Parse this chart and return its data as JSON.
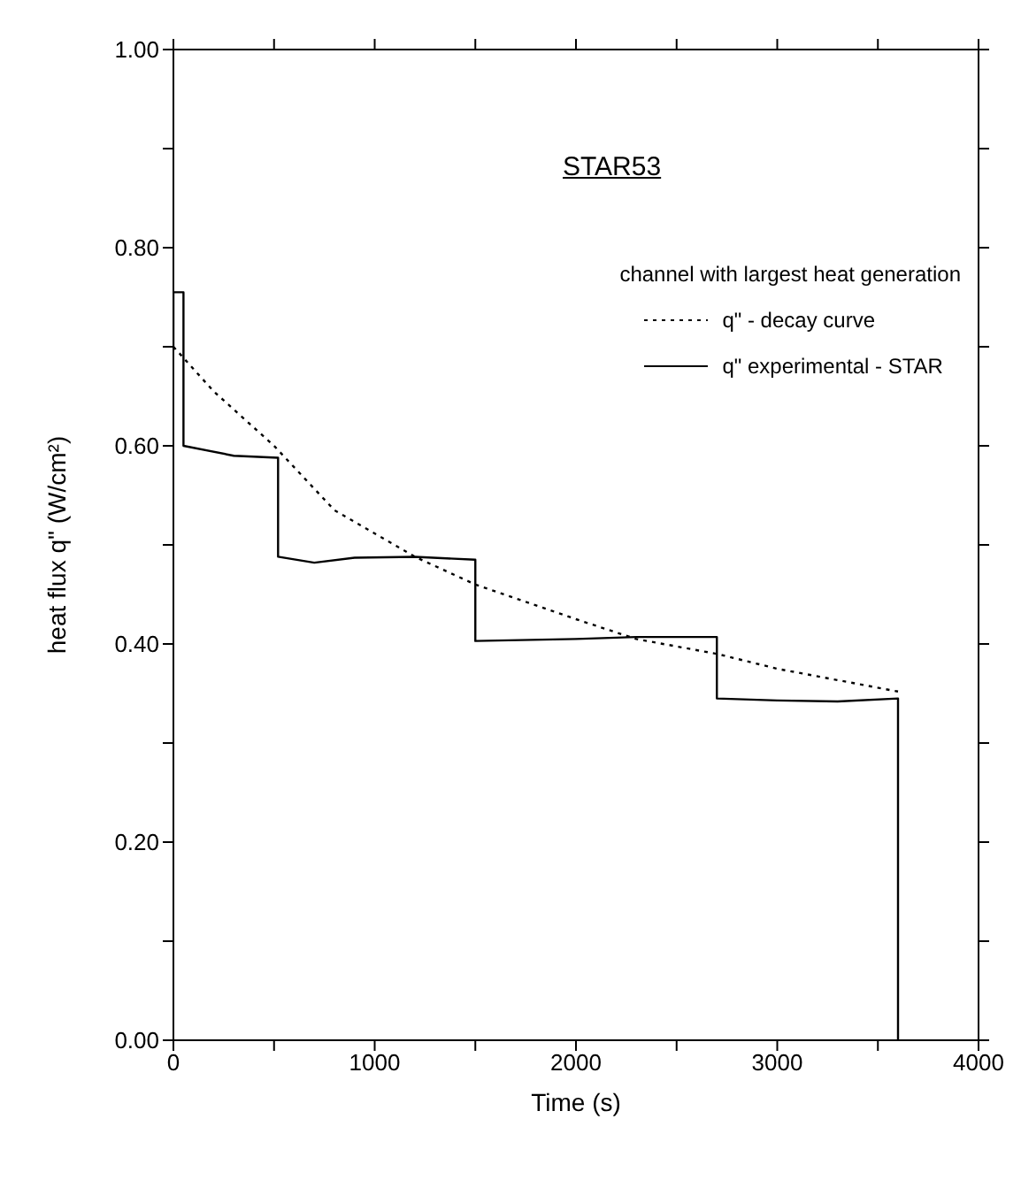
{
  "chart_data": {
    "type": "line",
    "title": "STAR53",
    "xlabel": "Time (s)",
    "ylabel": "heat flux q\" (W/cm²)",
    "legend_title": "channel with largest heat generation",
    "legend": "top right",
    "marker": "none",
    "xlim": [
      0,
      4000
    ],
    "xticks": [
      0,
      {
        "value": 500,
        "label": null
      },
      1000,
      {
        "value": 1500,
        "label": null
      },
      2000,
      {
        "value": 2500,
        "label": null
      },
      3000,
      {
        "value": 3500,
        "label": null
      },
      4000
    ],
    "ylim": [
      0,
      1
    ],
    "yticks": [
      {
        "value": 0,
        "label": "0.00"
      },
      {
        "value": 0.1,
        "label": null
      },
      {
        "value": 0.2,
        "label": "0.20"
      },
      {
        "value": 0.3,
        "label": null
      },
      {
        "value": 0.4,
        "label": "0.40"
      },
      {
        "value": 0.5,
        "label": null
      },
      {
        "value": 0.6,
        "label": "0.60"
      },
      {
        "value": 0.7,
        "label": null
      },
      {
        "value": 0.8,
        "label": "0.80"
      },
      {
        "value": 0.9,
        "label": null
      },
      {
        "value": 1,
        "label": "1.00"
      }
    ],
    "series": [
      {
        "name": "q\" - decay curve",
        "color": "#000000",
        "line_style": "dotted",
        "x": [
          0,
          200,
          500,
          800,
          1200,
          1500,
          2000,
          2300,
          2700,
          3000,
          3600
        ],
        "values": [
          0.7,
          0.655,
          0.6,
          0.535,
          0.488,
          0.46,
          0.425,
          0.405,
          0.39,
          0.375,
          0.352
        ]
      },
      {
        "name": "q\" experimental - STAR",
        "color": "#000000",
        "line_style": "solid",
        "x": [
          0,
          0,
          50,
          50,
          300,
          520,
          520,
          700,
          900,
          1200,
          1500,
          1500,
          2000,
          2300,
          2700,
          2700,
          3000,
          3300,
          3600,
          3600
        ],
        "values": [
          0.7,
          0.755,
          0.755,
          0.6,
          0.59,
          0.588,
          0.488,
          0.482,
          0.487,
          0.488,
          0.485,
          0.403,
          0.405,
          0.407,
          0.407,
          0.345,
          0.343,
          0.342,
          0.345,
          0
        ]
      }
    ]
  }
}
